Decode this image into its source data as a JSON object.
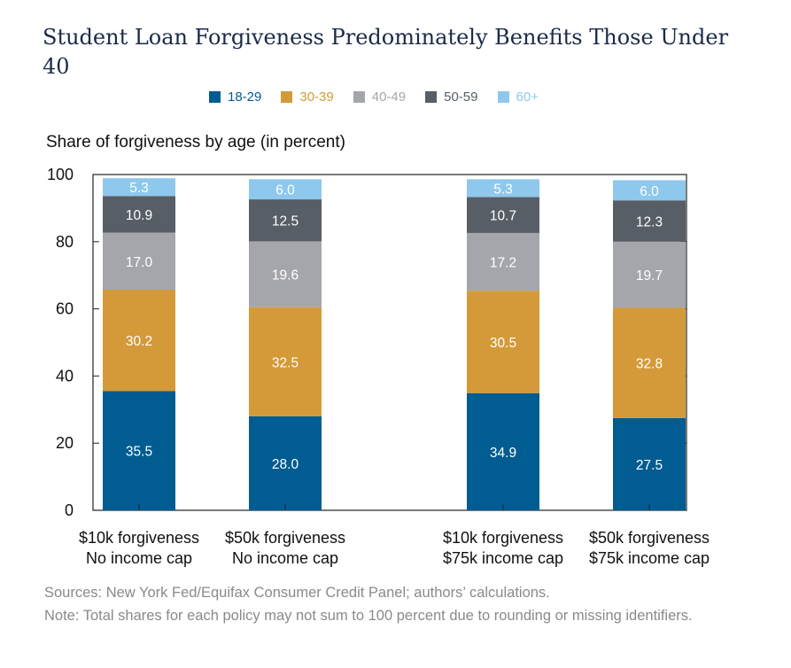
{
  "title": "Student Loan Forgiveness Predominately Benefits Those Under 40",
  "sources": "Sources: New York Fed/Equifax Consumer Credit Panel; authors’ calculations.",
  "note": "Note: Total shares for each policy may not sum to 100 percent due to rounding or missing identifiers.",
  "chart_data": {
    "type": "bar",
    "stacked": true,
    "ylabel": "Share of forgiveness by age (in percent)",
    "ylim": [
      0,
      100
    ],
    "yticks": [
      0,
      20,
      40,
      60,
      80,
      100
    ],
    "grid": false,
    "legend_position": "top",
    "categories": [
      [
        "$10k forgiveness",
        "No income cap"
      ],
      [
        "$50k forgiveness",
        "No income cap"
      ],
      [
        "$10k forgiveness",
        "$75k income cap"
      ],
      [
        "$50k forgiveness",
        "$75k income cap"
      ]
    ],
    "series": [
      {
        "name": "18-29",
        "color": "#005c91",
        "label_color": "#ffffff",
        "values": [
          35.5,
          28.0,
          34.9,
          27.5
        ]
      },
      {
        "name": "30-39",
        "color": "#d49a3a",
        "label_color": "#ffffff",
        "values": [
          30.2,
          32.5,
          30.5,
          32.8
        ]
      },
      {
        "name": "40-49",
        "color": "#a5a6ab",
        "label_color": "#ffffff",
        "values": [
          17.0,
          19.6,
          17.2,
          19.7
        ]
      },
      {
        "name": "50-59",
        "color": "#585e66",
        "label_color": "#ffffff",
        "values": [
          10.9,
          12.5,
          10.7,
          12.3
        ]
      },
      {
        "name": "60+",
        "color": "#8ec8ec",
        "label_color": "#ffffff",
        "values": [
          5.3,
          6.0,
          5.3,
          6.0
        ]
      }
    ]
  }
}
